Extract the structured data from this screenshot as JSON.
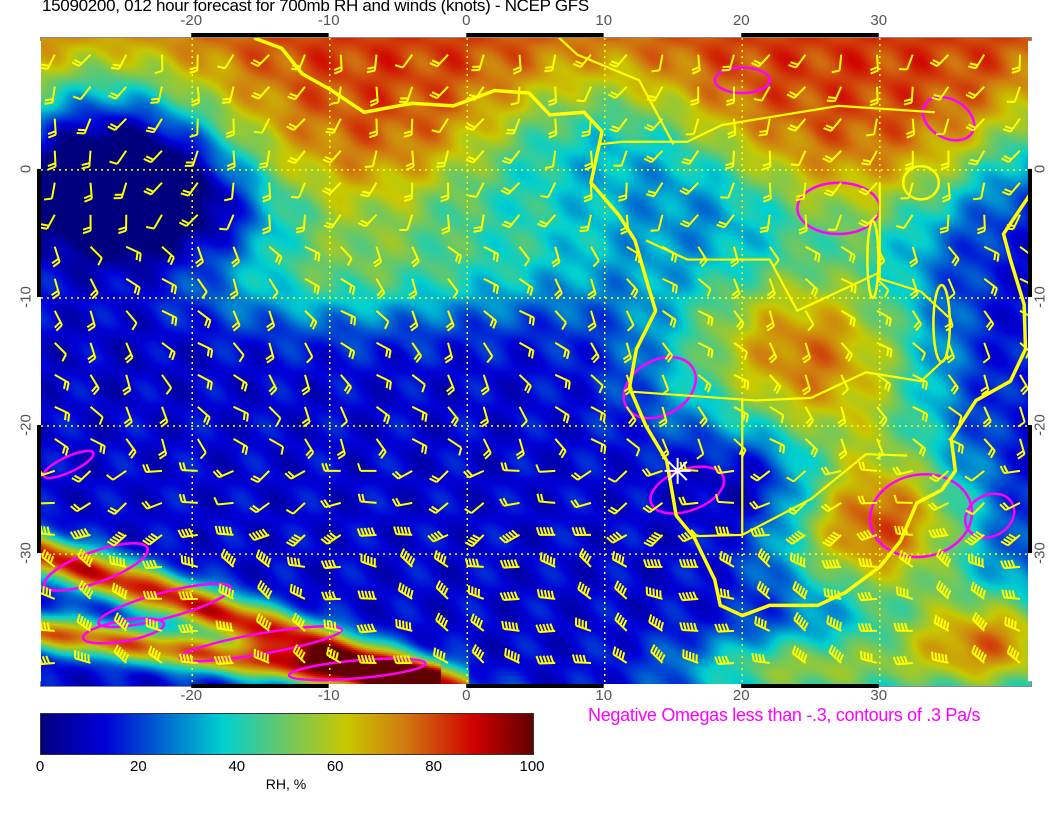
{
  "title": "15090200, 012 hour forecast for 700mb RH and winds (knots) - NCEP GFS",
  "lon_ticks": [
    "-20",
    "-10",
    "0",
    "10",
    "20",
    "30"
  ],
  "lon_values": [
    -20,
    -10,
    0,
    10,
    20,
    30
  ],
  "lat_ticks": [
    "0",
    "-10",
    "-20",
    "-30"
  ],
  "lat_values": [
    0,
    -10,
    -20,
    -30
  ],
  "map_extent": {
    "lon": [
      -31,
      41
    ],
    "lat": [
      -40.3,
      10.3
    ]
  },
  "colorbar": {
    "ticks": [
      "0",
      "20",
      "40",
      "60",
      "80",
      "100"
    ],
    "label": "RH, %",
    "range": [
      0,
      100
    ]
  },
  "omega_note": "Negative Omegas less than -.3, contours of .3 Pa/s",
  "colors": {
    "barbs": "#ffff00",
    "coastline": "#ffff00",
    "omega": "#ff00ff",
    "marker": "#ffffff"
  },
  "marker": {
    "icon": "asterisk-icon",
    "lon": 15.3,
    "lat": -23.5
  }
}
